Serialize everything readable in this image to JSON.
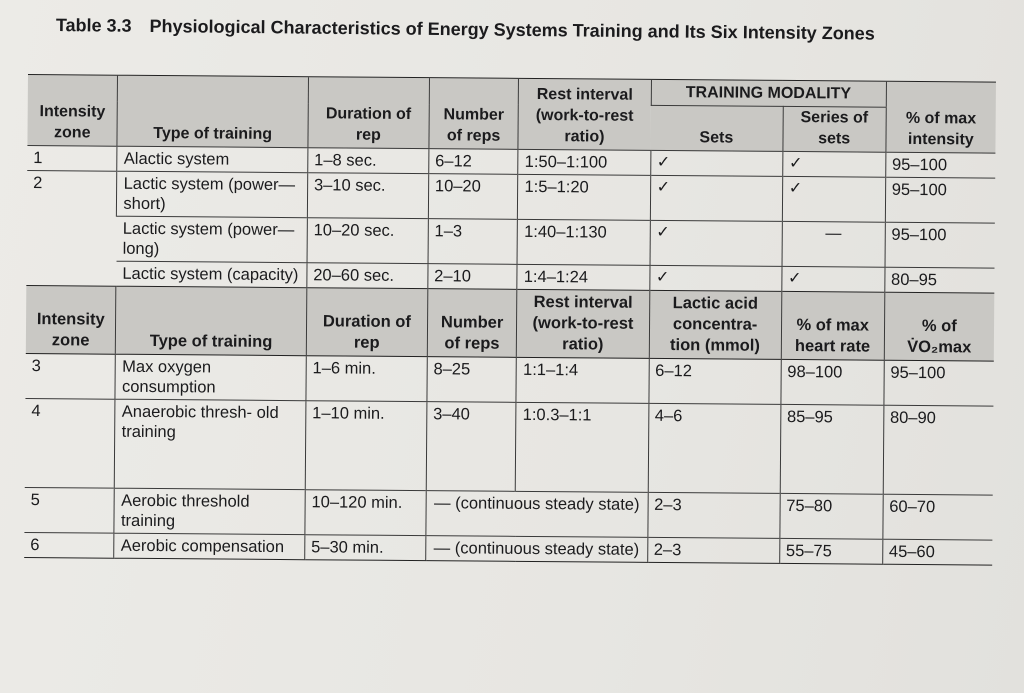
{
  "caption": {
    "number": "Table 3.3",
    "title": "Physiological Characteristics of Energy Systems Training and Its Six Intensity Zones"
  },
  "header1": {
    "zone": "Intensity zone",
    "type": "Type of training",
    "duration": "Duration of rep",
    "reps": "Number of reps",
    "rest": "Rest interval (work-to-rest ratio)",
    "modality": "TRAINING MODALITY",
    "sets": "Sets",
    "series": "Series of sets",
    "intensity": "% of max intensity"
  },
  "rows1": [
    {
      "zone": "1",
      "type": "Alactic system",
      "duration": "1–8 sec.",
      "reps": "6–12",
      "rest": "1:50–1:100",
      "sets": "✓",
      "series": "✓",
      "intensity": "95–100"
    },
    {
      "zone": "2",
      "type": "Lactic system (power—short)",
      "duration": "3–10 sec.",
      "reps": "10–20",
      "rest": "1:5–1:20",
      "sets": "✓",
      "series": "✓",
      "intensity": "95–100"
    },
    {
      "zone": "",
      "type": "Lactic system (power—long)",
      "duration": "10–20 sec.",
      "reps": "1–3",
      "rest": "1:40–1:130",
      "sets": "✓",
      "series": "—",
      "intensity": "95–100"
    },
    {
      "zone": "",
      "type": "Lactic system (capacity)",
      "duration": "20–60 sec.",
      "reps": "2–10",
      "rest": "1:4–1:24",
      "sets": "✓",
      "series": "✓",
      "intensity": "80–95"
    }
  ],
  "header2": {
    "zone": "Intensity zone",
    "type": "Type of training",
    "duration": "Duration of rep",
    "reps": "Number of reps",
    "rest": "Rest interval (work-to-rest ratio)",
    "lactic": "Lactic acid concentra- tion (mmol)",
    "hr": "% of max heart rate",
    "vo2": "% of V̇O₂max"
  },
  "rows2": [
    {
      "zone": "3",
      "type": "Max oxygen consumption",
      "duration": "1–6 min.",
      "reps": "8–25",
      "rest": "1:1–1:4",
      "lactic": "6–12",
      "hr": "98–100",
      "vo2": "95–100"
    },
    {
      "zone": "4",
      "type": "Anaerobic thresh- old training",
      "duration": "1–10 min.",
      "reps": "3–40",
      "rest": "1:0.3–1:1",
      "lactic": "4–6",
      "hr": "85–95",
      "vo2": "80–90"
    },
    {
      "zone": "5",
      "type": "Aerobic threshold training",
      "duration": "10–120 min.",
      "reps_rest": "— (continuous steady state)",
      "lactic": "2–3",
      "hr": "75–80",
      "vo2": "60–70"
    },
    {
      "zone": "6",
      "type": "Aerobic compensation",
      "duration": "5–30 min.",
      "reps_rest": "— (continuous steady state)",
      "lactic": "2–3",
      "hr": "55–75",
      "vo2": "45–60"
    }
  ]
}
